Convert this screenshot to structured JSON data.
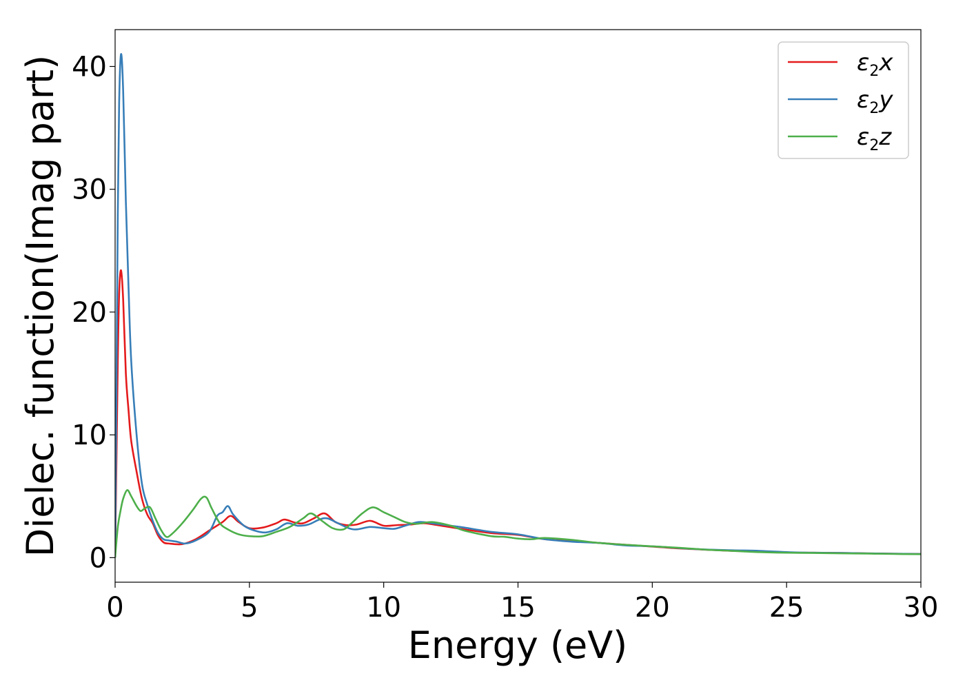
{
  "chart_data": {
    "type": "line",
    "xlabel": "Energy (eV)",
    "ylabel": "Dielec. function(Imag part)",
    "xlim": [
      0,
      30
    ],
    "ylim": [
      -2,
      43
    ],
    "xticks": [
      0,
      5,
      10,
      15,
      20,
      25,
      30
    ],
    "yticks": [
      0,
      10,
      20,
      30,
      40
    ],
    "grid": false,
    "legend_position": "top-right",
    "series": [
      {
        "name": "ε2x",
        "legend_base": "ε",
        "legend_sub": "2",
        "legend_var": "x",
        "color": "#e41a1c",
        "points": [
          [
            0,
            0
          ],
          [
            0.05,
            8
          ],
          [
            0.1,
            16
          ],
          [
            0.15,
            21.5
          ],
          [
            0.22,
            23.4
          ],
          [
            0.3,
            21
          ],
          [
            0.4,
            15
          ],
          [
            0.5,
            12
          ],
          [
            0.6,
            9.5
          ],
          [
            0.8,
            7
          ],
          [
            1.0,
            4.8
          ],
          [
            1.2,
            3.5
          ],
          [
            1.4,
            2.8
          ],
          [
            1.6,
            1.8
          ],
          [
            1.8,
            1.25
          ],
          [
            2.0,
            1.15
          ],
          [
            2.5,
            1.1
          ],
          [
            3.0,
            1.5
          ],
          [
            3.5,
            2.2
          ],
          [
            4.0,
            2.9
          ],
          [
            4.3,
            3.4
          ],
          [
            4.6,
            2.9
          ],
          [
            5.0,
            2.4
          ],
          [
            5.5,
            2.45
          ],
          [
            6.0,
            2.8
          ],
          [
            6.3,
            3.1
          ],
          [
            6.7,
            2.85
          ],
          [
            7.0,
            2.8
          ],
          [
            7.4,
            3.2
          ],
          [
            7.8,
            3.6
          ],
          [
            8.2,
            2.9
          ],
          [
            8.6,
            2.65
          ],
          [
            9.0,
            2.7
          ],
          [
            9.5,
            3.0
          ],
          [
            10.0,
            2.6
          ],
          [
            10.5,
            2.65
          ],
          [
            11.0,
            2.7
          ],
          [
            11.5,
            2.8
          ],
          [
            12.0,
            2.65
          ],
          [
            13.0,
            2.3
          ],
          [
            14.0,
            2.0
          ],
          [
            15.0,
            1.85
          ],
          [
            16.0,
            1.5
          ],
          [
            17.0,
            1.35
          ],
          [
            18.0,
            1.2
          ],
          [
            19.0,
            1.05
          ],
          [
            20.0,
            0.9
          ],
          [
            21.0,
            0.75
          ],
          [
            22.0,
            0.65
          ],
          [
            23.0,
            0.55
          ],
          [
            24.0,
            0.5
          ],
          [
            25.0,
            0.42
          ],
          [
            26.0,
            0.4
          ],
          [
            27.0,
            0.38
          ],
          [
            28.0,
            0.35
          ],
          [
            29.0,
            0.32
          ],
          [
            30.0,
            0.3
          ]
        ]
      },
      {
        "name": "ε2y",
        "legend_base": "ε",
        "legend_sub": "2",
        "legend_var": "y",
        "color": "#377eb8",
        "points": [
          [
            0,
            0
          ],
          [
            0.05,
            14
          ],
          [
            0.1,
            28
          ],
          [
            0.15,
            37
          ],
          [
            0.22,
            41
          ],
          [
            0.3,
            38
          ],
          [
            0.4,
            29
          ],
          [
            0.5,
            22
          ],
          [
            0.6,
            16
          ],
          [
            0.8,
            10
          ],
          [
            1.0,
            6
          ],
          [
            1.2,
            4.3
          ],
          [
            1.4,
            3
          ],
          [
            1.6,
            2
          ],
          [
            1.8,
            1.5
          ],
          [
            2.0,
            1.4
          ],
          [
            2.3,
            1.3
          ],
          [
            2.6,
            1.15
          ],
          [
            3.0,
            1.4
          ],
          [
            3.5,
            2.1
          ],
          [
            3.8,
            3.4
          ],
          [
            4.0,
            3.7
          ],
          [
            4.2,
            4.2
          ],
          [
            4.4,
            3.5
          ],
          [
            4.8,
            2.6
          ],
          [
            5.2,
            2.2
          ],
          [
            5.6,
            2.05
          ],
          [
            6.0,
            2.3
          ],
          [
            6.4,
            2.8
          ],
          [
            6.8,
            2.6
          ],
          [
            7.2,
            2.7
          ],
          [
            7.6,
            3.1
          ],
          [
            7.9,
            3.2
          ],
          [
            8.3,
            2.8
          ],
          [
            8.7,
            2.4
          ],
          [
            9.0,
            2.3
          ],
          [
            9.5,
            2.5
          ],
          [
            10.0,
            2.4
          ],
          [
            10.4,
            2.35
          ],
          [
            10.8,
            2.6
          ],
          [
            11.3,
            2.9
          ],
          [
            11.8,
            2.8
          ],
          [
            12.5,
            2.6
          ],
          [
            13.0,
            2.45
          ],
          [
            14.0,
            2.1
          ],
          [
            15.0,
            1.9
          ],
          [
            16.0,
            1.5
          ],
          [
            17.0,
            1.3
          ],
          [
            18.0,
            1.2
          ],
          [
            19.0,
            1.0
          ],
          [
            20.0,
            0.92
          ],
          [
            21.0,
            0.78
          ],
          [
            22.0,
            0.66
          ],
          [
            23.0,
            0.6
          ],
          [
            24.0,
            0.55
          ],
          [
            25.0,
            0.45
          ],
          [
            26.0,
            0.4
          ],
          [
            27.0,
            0.38
          ],
          [
            28.0,
            0.35
          ],
          [
            29.0,
            0.32
          ],
          [
            30.0,
            0.3
          ]
        ]
      },
      {
        "name": "ε2z",
        "legend_base": "ε",
        "legend_sub": "2",
        "legend_var": "z",
        "color": "#4daf4a",
        "points": [
          [
            0,
            0
          ],
          [
            0.1,
            2.5
          ],
          [
            0.2,
            3.8
          ],
          [
            0.3,
            4.8
          ],
          [
            0.45,
            5.5
          ],
          [
            0.6,
            5.0
          ],
          [
            0.8,
            4.2
          ],
          [
            0.95,
            3.8
          ],
          [
            1.1,
            4.0
          ],
          [
            1.3,
            4.1
          ],
          [
            1.5,
            3.2
          ],
          [
            1.7,
            2.3
          ],
          [
            1.9,
            1.7
          ],
          [
            2.1,
            1.9
          ],
          [
            2.5,
            2.8
          ],
          [
            2.9,
            3.9
          ],
          [
            3.2,
            4.8
          ],
          [
            3.4,
            4.9
          ],
          [
            3.6,
            4.0
          ],
          [
            3.9,
            2.8
          ],
          [
            4.2,
            2.3
          ],
          [
            4.6,
            1.9
          ],
          [
            5.0,
            1.75
          ],
          [
            5.5,
            1.75
          ],
          [
            6.0,
            2.1
          ],
          [
            6.5,
            2.5
          ],
          [
            7.0,
            3.2
          ],
          [
            7.3,
            3.6
          ],
          [
            7.7,
            3.0
          ],
          [
            8.1,
            2.4
          ],
          [
            8.5,
            2.3
          ],
          [
            8.8,
            2.8
          ],
          [
            9.2,
            3.6
          ],
          [
            9.6,
            4.1
          ],
          [
            10.0,
            3.7
          ],
          [
            10.4,
            3.3
          ],
          [
            10.8,
            2.9
          ],
          [
            11.2,
            2.75
          ],
          [
            11.8,
            2.9
          ],
          [
            12.5,
            2.6
          ],
          [
            13.0,
            2.2
          ],
          [
            14.0,
            1.75
          ],
          [
            14.5,
            1.7
          ],
          [
            15.0,
            1.55
          ],
          [
            15.5,
            1.5
          ],
          [
            16.0,
            1.6
          ],
          [
            17.0,
            1.45
          ],
          [
            18.0,
            1.2
          ],
          [
            19.0,
            1.05
          ],
          [
            20.0,
            0.92
          ],
          [
            21.0,
            0.8
          ],
          [
            22.0,
            0.65
          ],
          [
            23.0,
            0.55
          ],
          [
            24.0,
            0.45
          ],
          [
            25.0,
            0.4
          ],
          [
            26.0,
            0.38
          ],
          [
            27.0,
            0.35
          ],
          [
            28.0,
            0.33
          ],
          [
            29.0,
            0.3
          ],
          [
            30.0,
            0.28
          ]
        ]
      }
    ]
  }
}
